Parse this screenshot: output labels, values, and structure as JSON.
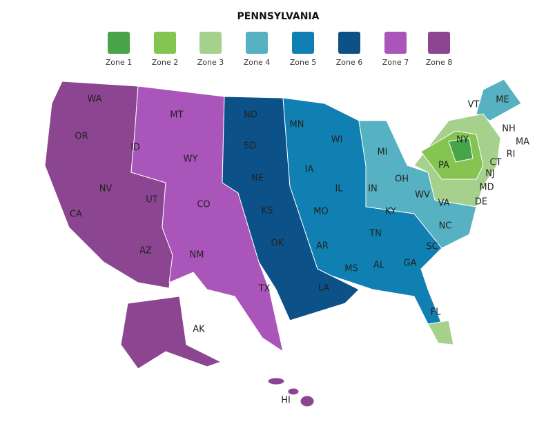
{
  "title": "PENNSYLVANIA",
  "legend": [
    {
      "label": "Zone 1",
      "color": "#47a448"
    },
    {
      "label": "Zone 2",
      "color": "#86c451"
    },
    {
      "label": "Zone 3",
      "color": "#a5d18c"
    },
    {
      "label": "Zone 4",
      "color": "#56b1c2"
    },
    {
      "label": "Zone 5",
      "color": "#0f80b1"
    },
    {
      "label": "Zone 6",
      "color": "#0c5187"
    },
    {
      "label": "Zone 7",
      "color": "#a955b9"
    },
    {
      "label": "Zone 8",
      "color": "#8c4591"
    }
  ],
  "states": [
    "WA",
    "OR",
    "CA",
    "NV",
    "ID",
    "MT",
    "WY",
    "UT",
    "CO",
    "AZ",
    "NM",
    "ND",
    "SD",
    "NE",
    "KS",
    "OK",
    "TX",
    "MN",
    "IA",
    "MO",
    "AR",
    "LA",
    "WI",
    "IL",
    "MI",
    "IN",
    "OH",
    "KY",
    "TN",
    "MS",
    "AL",
    "GA",
    "FL",
    "SC",
    "NC",
    "VA",
    "WV",
    "PA",
    "NY",
    "VT",
    "NH",
    "ME",
    "MA",
    "RI",
    "CT",
    "NJ",
    "DE",
    "MD",
    "AK",
    "HI"
  ]
}
